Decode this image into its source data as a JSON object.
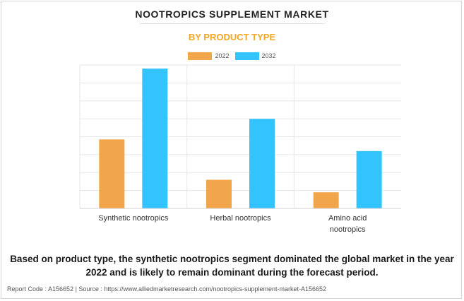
{
  "title": "NOOTROPICS SUPPLEMENT MARKET",
  "subtitle": "BY PRODUCT TYPE",
  "colors": {
    "y2022": "#f2a64b",
    "y2032": "#33c3ff",
    "subtitle": "#f5a623"
  },
  "chart_data": {
    "type": "bar",
    "title": "NOOTROPICS SUPPLEMENT MARKET",
    "subtitle": "BY PRODUCT TYPE",
    "categories": [
      "Synthetic nootropics",
      "Herbal nootropics",
      "Amino acid nootropics"
    ],
    "category_lines": [
      [
        "Synthetic nootropics"
      ],
      [
        "Herbal nootropics"
      ],
      [
        "Amino acid",
        "nootropics"
      ]
    ],
    "series": [
      {
        "name": "2022",
        "values": [
          3.85,
          1.6,
          0.9
        ]
      },
      {
        "name": "2032",
        "values": [
          7.8,
          5.0,
          3.2
        ]
      }
    ],
    "ylim": [
      0,
      8
    ],
    "grid": true,
    "legend": "top-center",
    "y_tick_labels_shown": false
  },
  "caption": "Based on product type, the synthetic nootropics segment dominated the global market in the year 2022 and is likely to remain dominant during the forecast period.",
  "footer": "Report Code : A156652  |  Source : https://www.alliedmarketresearch.com/nootropics-supplement-market-A156652"
}
